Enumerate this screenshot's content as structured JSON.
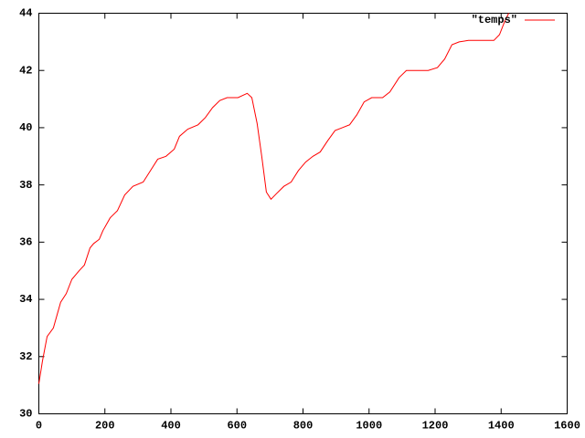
{
  "chart_data": {
    "type": "line",
    "x": [
      0,
      11,
      25,
      44,
      66,
      83,
      100,
      122,
      138,
      155,
      166,
      183,
      194,
      216,
      238,
      260,
      285,
      316,
      338,
      360,
      385,
      410,
      426,
      451,
      482,
      504,
      526,
      548,
      570,
      603,
      631,
      645,
      661,
      675,
      689,
      703,
      720,
      742,
      764,
      786,
      808,
      830,
      852,
      875,
      897,
      919,
      941,
      963,
      985,
      1008,
      1041,
      1063,
      1091,
      1113,
      1146,
      1179,
      1207,
      1229,
      1251,
      1273,
      1301,
      1345,
      1378,
      1395,
      1412,
      1423
    ],
    "series": [
      {
        "name": "\"temps\"",
        "color": "#ff0000",
        "values": [
          31.05,
          31.85,
          32.7,
          33.0,
          33.9,
          34.2,
          34.7,
          35.0,
          35.2,
          35.8,
          35.95,
          36.1,
          36.4,
          36.85,
          37.1,
          37.65,
          37.95,
          38.1,
          38.5,
          38.9,
          39.0,
          39.25,
          39.7,
          39.95,
          40.1,
          40.35,
          40.7,
          40.95,
          41.05,
          41.05,
          41.2,
          41.05,
          40.15,
          39.0,
          37.75,
          37.5,
          37.7,
          37.95,
          38.1,
          38.5,
          38.8,
          39.0,
          39.15,
          39.55,
          39.9,
          40.0,
          40.1,
          40.45,
          40.9,
          41.05,
          41.05,
          41.25,
          41.75,
          42.0,
          42.0,
          42.0,
          42.1,
          42.4,
          42.9,
          43.0,
          43.05,
          43.05,
          43.05,
          43.25,
          43.75,
          44.0
        ]
      }
    ],
    "xlim": [
      0,
      1600
    ],
    "xticks": [
      0,
      200,
      400,
      600,
      800,
      1000,
      1200,
      1400,
      1600
    ],
    "ylim": [
      30,
      44
    ],
    "yticks": [
      30,
      32,
      34,
      36,
      38,
      40,
      42,
      44
    ],
    "grid": false,
    "legend_position": "top-right"
  }
}
